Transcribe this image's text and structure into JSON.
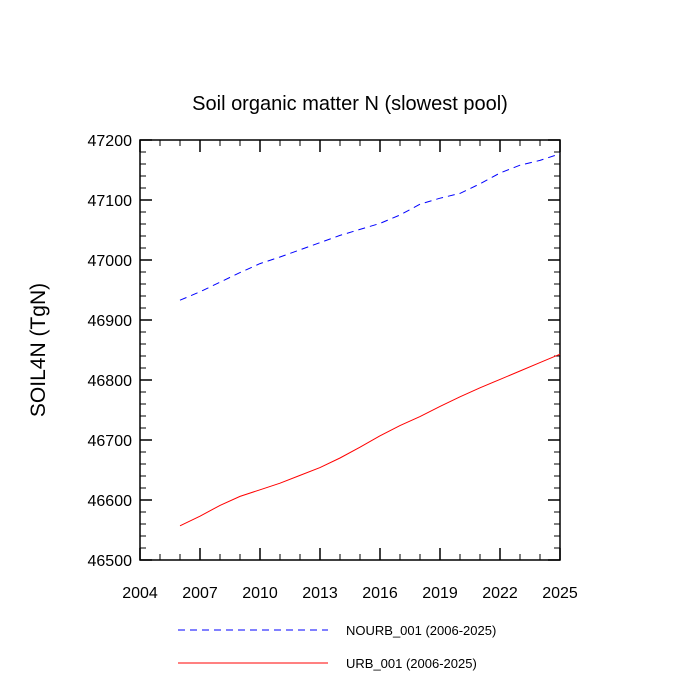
{
  "chart_data": {
    "type": "line",
    "title": "Soil organic matter N (slowest pool)",
    "xlabel": "",
    "ylabel": "SOIL4N  (TgN)",
    "xlim": [
      2004,
      2025
    ],
    "ylim": [
      46500,
      47200
    ],
    "xticks": [
      2004,
      2007,
      2010,
      2013,
      2016,
      2019,
      2022,
      2025
    ],
    "yticks": [
      46500,
      46600,
      46700,
      46800,
      46900,
      47000,
      47100,
      47200
    ],
    "x_tick_labels": [
      "2004",
      "2007",
      "2010",
      "2013",
      "2016",
      "2019",
      "2022",
      "2025"
    ],
    "y_tick_labels": [
      "46500",
      "46600",
      "46700",
      "46800",
      "46900",
      "47000",
      "47100",
      "47200"
    ],
    "grid": false,
    "legend_position": "bottom",
    "series": [
      {
        "name": "NOURB_001 (2006-2025)",
        "color": "#0000ff",
        "style": "dashed",
        "x": [
          2006,
          2007,
          2008,
          2009,
          2010,
          2011,
          2012,
          2013,
          2014,
          2015,
          2016,
          2017,
          2018,
          2019,
          2020,
          2021,
          2022,
          2023,
          2024,
          2025
        ],
        "values": [
          46933,
          46947,
          46963,
          46979,
          46994,
          47005,
          47017,
          47029,
          47041,
          47051,
          47061,
          47075,
          47093,
          47103,
          47111,
          47127,
          47145,
          47158,
          47166,
          47177
        ]
      },
      {
        "name": "URB_001 (2006-2025)",
        "color": "#ff0000",
        "style": "solid",
        "x": [
          2006,
          2007,
          2008,
          2009,
          2010,
          2011,
          2012,
          2013,
          2014,
          2015,
          2016,
          2017,
          2018,
          2019,
          2020,
          2021,
          2022,
          2023,
          2024,
          2025
        ],
        "values": [
          46557,
          46573,
          46591,
          46606,
          46617,
          46628,
          46641,
          46654,
          46670,
          46688,
          46707,
          46724,
          46739,
          46756,
          46772,
          46787,
          46801,
          46815,
          46829,
          46843
        ]
      }
    ]
  }
}
